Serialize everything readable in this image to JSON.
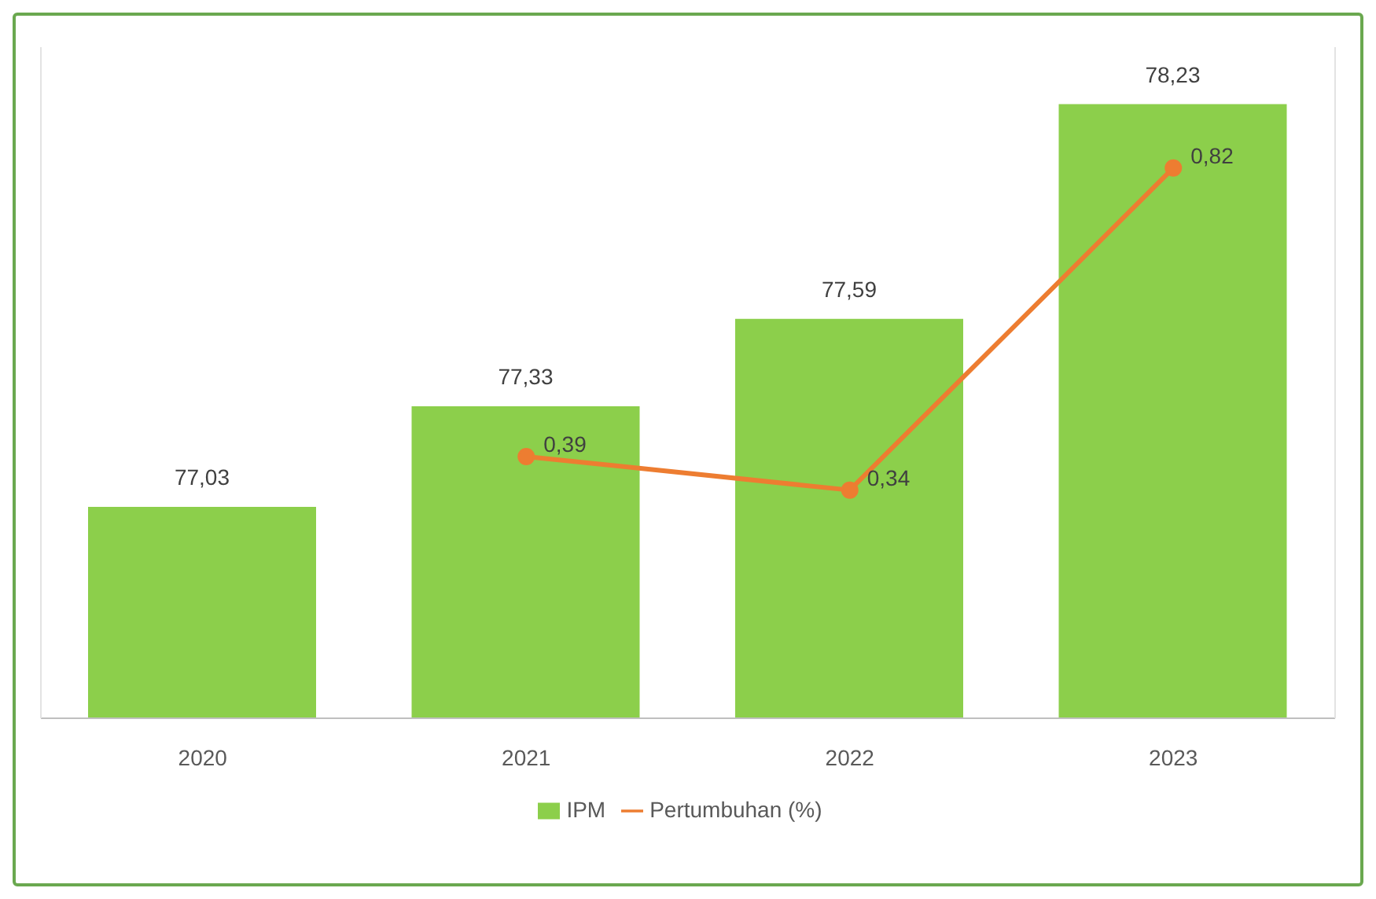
{
  "chart_data": {
    "type": "bar",
    "categories": [
      "2020",
      "2021",
      "2022",
      "2023"
    ],
    "series": [
      {
        "name": "IPM",
        "color": "#8ccf4b",
        "values": [
          77.03,
          77.33,
          77.59,
          78.23
        ],
        "value_labels": [
          "77,03",
          "77,33",
          "77,59",
          "78,23"
        ]
      },
      {
        "name": "Pertumbuhan (%)",
        "type": "line",
        "axis": "y2",
        "color": "#ed7d31",
        "values": [
          null,
          0.39,
          0.34,
          0.82
        ],
        "value_labels": [
          null,
          "0,39",
          "0,34",
          "0,82"
        ]
      }
    ],
    "ylim": [
      76.4,
      78.4
    ],
    "y2lim": [
      0,
      1
    ],
    "tick_labels": "x",
    "legend": "bottom",
    "marker": "circle"
  }
}
